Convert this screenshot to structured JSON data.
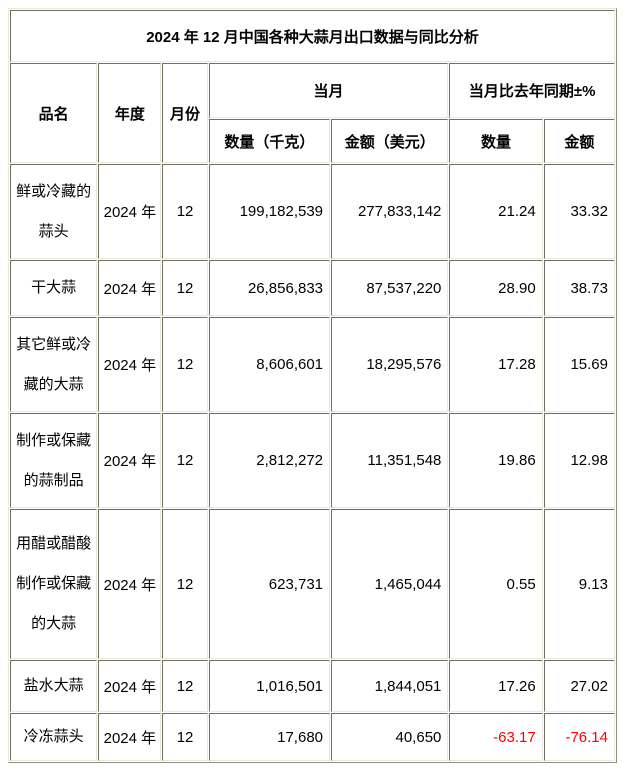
{
  "title": "2024 年 12 月中国各种大蒜月出口数据与同比分析",
  "table": {
    "headers": {
      "product": "品名",
      "year": "年度",
      "month": "月份",
      "current_month": "当月",
      "yoy": "当月比去年同期±%",
      "qty_kg": "数量（千克）",
      "amount_usd": "金额（美元）",
      "yoy_qty": "数量",
      "yoy_amount": "金额"
    },
    "rows": [
      {
        "product": "鲜或冷藏的蒜头",
        "year": "2024 年",
        "month": "12",
        "qty": "199,182,539",
        "amount": "277,833,142",
        "qty_pct": "21.24",
        "amount_pct": "33.32"
      },
      {
        "product": "干大蒜",
        "year": "2024 年",
        "month": "12",
        "qty": "26,856,833",
        "amount": "87,537,220",
        "qty_pct": "28.90",
        "amount_pct": "38.73"
      },
      {
        "product": "其它鲜或冷藏的大蒜",
        "year": "2024 年",
        "month": "12",
        "qty": "8,606,601",
        "amount": "18,295,576",
        "qty_pct": "17.28",
        "amount_pct": "15.69"
      },
      {
        "product": "制作或保藏的蒜制品",
        "year": "2024 年",
        "month": "12",
        "qty": "2,812,272",
        "amount": "11,351,548",
        "qty_pct": "19.86",
        "amount_pct": "12.98"
      },
      {
        "product": "用醋或醋酸制作或保藏的大蒜",
        "year": "2024 年",
        "month": "12",
        "qty": "623,731",
        "amount": "1,465,044",
        "qty_pct": "0.55",
        "amount_pct": "9.13"
      },
      {
        "product": "盐水大蒜",
        "year": "2024 年",
        "month": "12",
        "qty": "1,016,501",
        "amount": "1,844,051",
        "qty_pct": "17.26",
        "amount_pct": "27.02"
      },
      {
        "product": "冷冻蒜头",
        "year": "2024 年",
        "month": "12",
        "qty": "17,680",
        "amount": "40,650",
        "qty_pct": "-63.17",
        "amount_pct": "-76.14"
      }
    ],
    "colors": {
      "text": "#000000",
      "negative_value": "#ff0000"
    }
  }
}
